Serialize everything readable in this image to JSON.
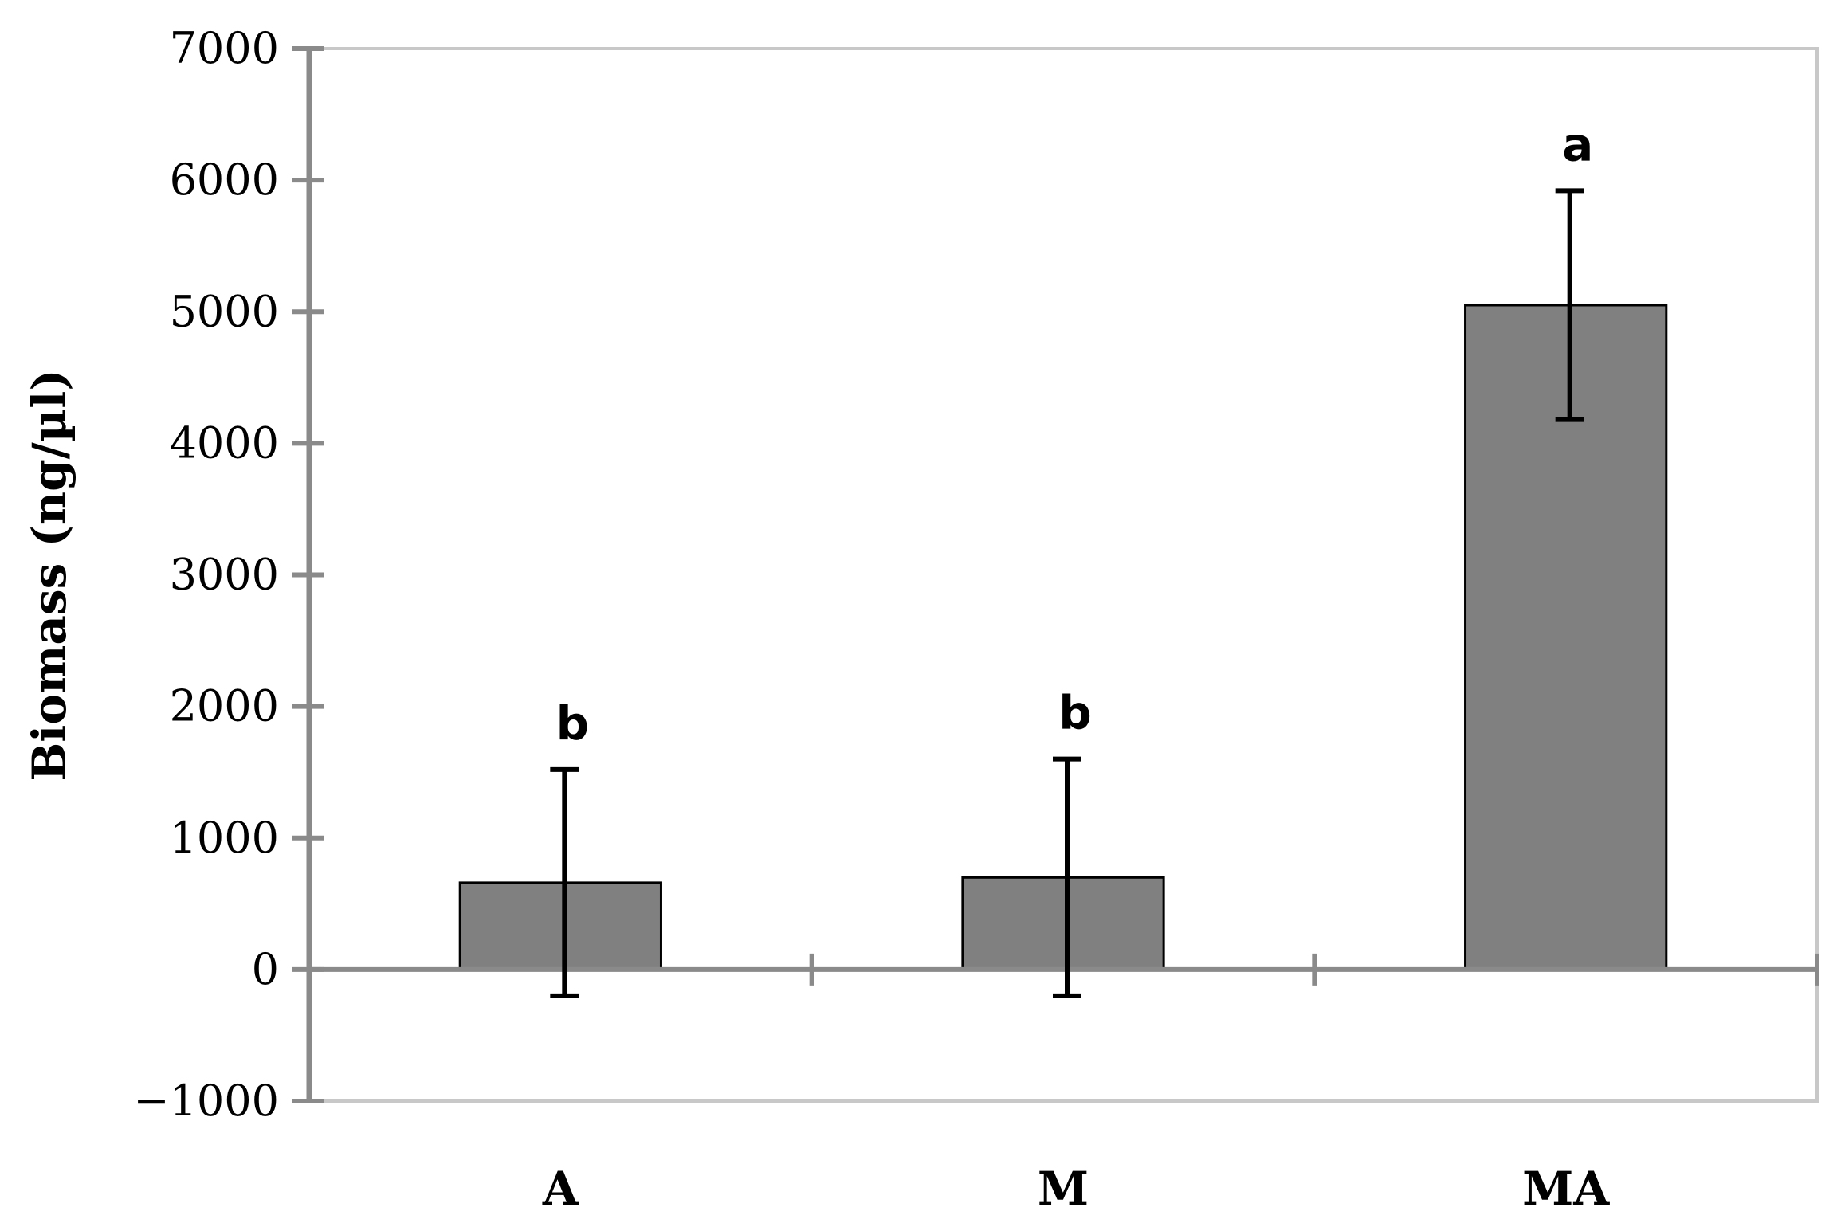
{
  "chart_data": {
    "type": "bar",
    "categories": [
      "A",
      "M",
      "MA"
    ],
    "values": [
      660,
      700,
      5050
    ],
    "error_low": [
      -200,
      -200,
      4180
    ],
    "error_high": [
      1520,
      1600,
      5920
    ],
    "significance": [
      "b",
      "b",
      "a"
    ],
    "ylabel": "Biomass (ng/µl)",
    "ylim": [
      -1000,
      7000
    ],
    "yticks": [
      -1000,
      0,
      1000,
      2000,
      3000,
      4000,
      5000,
      6000,
      7000
    ],
    "ytick_labels": [
      "−1000",
      "0",
      "1000",
      "2000",
      "3000",
      "4000",
      "5000",
      "6000",
      "7000"
    ],
    "bar_color": "#808080",
    "grid": false
  }
}
